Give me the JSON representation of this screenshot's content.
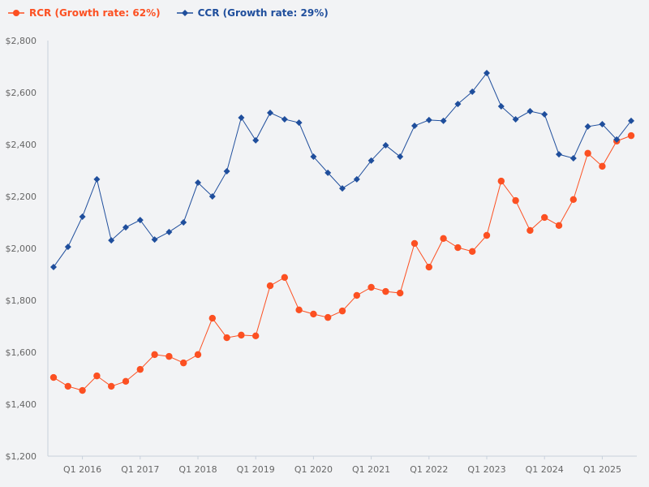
{
  "chart_data": {
    "type": "line",
    "title": "",
    "xlabel": "",
    "ylabel": "",
    "ylim": [
      1200,
      2800
    ],
    "yticks": [
      "$1,200",
      "$1,400",
      "$1,600",
      "$1,800",
      "$2,000",
      "$2,200",
      "$2,400",
      "$2,600",
      "$2,800"
    ],
    "ytick_values": [
      1200,
      1400,
      1600,
      1800,
      2000,
      2200,
      2400,
      2600,
      2800
    ],
    "xtick_labels": [
      "Q1 2016",
      "Q1 2017",
      "Q1 2018",
      "Q1 2019",
      "Q1 2020",
      "Q1 2021",
      "Q1 2022",
      "Q1 2023",
      "Q1 2024",
      "Q1 2025"
    ],
    "x": [
      "Q3 2015",
      "Q4 2015",
      "Q1 2016",
      "Q2 2016",
      "Q3 2016",
      "Q4 2016",
      "Q1 2017",
      "Q2 2017",
      "Q3 2017",
      "Q4 2017",
      "Q1 2018",
      "Q2 2018",
      "Q3 2018",
      "Q4 2018",
      "Q1 2019",
      "Q2 2019",
      "Q3 2019",
      "Q4 2019",
      "Q1 2020",
      "Q2 2020",
      "Q3 2020",
      "Q4 2020",
      "Q1 2021",
      "Q2 2021",
      "Q3 2021",
      "Q4 2021",
      "Q1 2022",
      "Q2 2022",
      "Q3 2022",
      "Q4 2022",
      "Q1 2023",
      "Q2 2023",
      "Q3 2023",
      "Q4 2023",
      "Q1 2024",
      "Q2 2024",
      "Q3 2024",
      "Q4 2024",
      "Q1 2025",
      "Q2 2025",
      "Q3 2025"
    ],
    "grid": false,
    "legend_position": "top-left",
    "series": [
      {
        "name": "RCR (Growth rate: 62%)",
        "color": "#fc5022",
        "marker": "circle",
        "values": [
          1503,
          1469,
          1453,
          1509,
          1469,
          1488,
          1534,
          1591,
          1584,
          1559,
          1591,
          1731,
          1656,
          1666,
          1663,
          1856,
          1888,
          1763,
          1747,
          1734,
          1759,
          1819,
          1850,
          1834,
          1828,
          2019,
          1928,
          2038,
          2003,
          1988,
          2050,
          2259,
          2184,
          2069,
          2119,
          2088,
          2188,
          2366,
          2316,
          2413,
          2434
        ]
      },
      {
        "name": "CCR (Growth rate: 29%)",
        "color": "#1f4e9c",
        "marker": "diamond",
        "values": [
          1928,
          2006,
          2122,
          2266,
          2031,
          2081,
          2109,
          2034,
          2063,
          2100,
          2253,
          2200,
          2297,
          2503,
          2416,
          2522,
          2497,
          2484,
          2353,
          2291,
          2231,
          2266,
          2338,
          2397,
          2353,
          2472,
          2494,
          2491,
          2556,
          2603,
          2675,
          2547,
          2497,
          2528,
          2516,
          2362,
          2347,
          2469,
          2478,
          2419,
          2491
        ]
      }
    ]
  }
}
